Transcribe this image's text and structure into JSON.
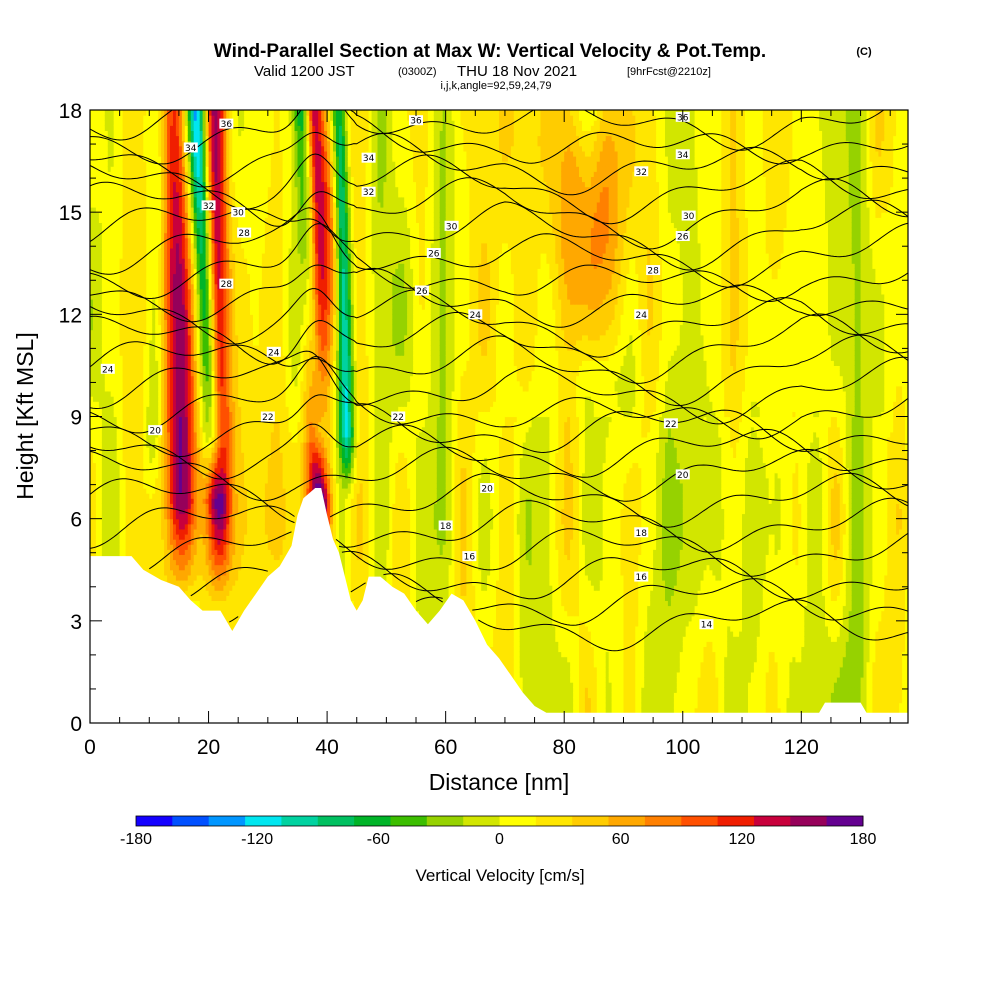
{
  "title": "Wind-Parallel Section at Max W: Vertical Velocity & Pot.Temp.",
  "title_mark": "(C)",
  "subtitle": {
    "valid": "Valid 1200 JST",
    "utc": "(0300Z)",
    "date": "THU 18 Nov 2021",
    "forecast": "[9hrFcst@2210z]",
    "indices": "i,j,k,angle=92,59,24,79"
  },
  "chart_data": {
    "type": "heatmap",
    "xlabel": "Distance [nm]",
    "ylabel": "Height [Kft MSL]",
    "xlim": [
      0,
      138
    ],
    "ylim": [
      0,
      18
    ],
    "x_ticks": [
      0,
      20,
      40,
      60,
      80,
      100,
      120
    ],
    "y_ticks": [
      0,
      3,
      6,
      9,
      12,
      15,
      18
    ],
    "shaded_field": "Vertical Velocity [cm/s]",
    "colorbar": {
      "label": "Vertical Velocity [cm/s]",
      "min": -180,
      "max": 180,
      "ticks": [
        -180,
        -120,
        -60,
        0,
        60,
        120,
        180
      ],
      "colors": [
        "#1400ff",
        "#0050ff",
        "#0096ff",
        "#00e6f0",
        "#00d2a0",
        "#00c060",
        "#00b428",
        "#3cbe00",
        "#96d200",
        "#d2e600",
        "#ffff00",
        "#ffe600",
        "#ffcc00",
        "#ffa800",
        "#ff8000",
        "#ff5000",
        "#f01e00",
        "#c8003c",
        "#96005a",
        "#640090"
      ]
    },
    "contour_field": "Potential Temperature [C]",
    "contour_labels": [
      {
        "value": 14,
        "x": 104,
        "y": 2.9
      },
      {
        "value": 16,
        "x": 93,
        "y": 4.3
      },
      {
        "value": 16,
        "x": 64,
        "y": 4.9
      },
      {
        "value": 18,
        "x": 93,
        "y": 5.6
      },
      {
        "value": 18,
        "x": 60,
        "y": 5.8
      },
      {
        "value": 20,
        "x": 100,
        "y": 7.3
      },
      {
        "value": 20,
        "x": 67,
        "y": 6.9
      },
      {
        "value": 20,
        "x": 11,
        "y": 8.6
      },
      {
        "value": 22,
        "x": 98,
        "y": 8.8
      },
      {
        "value": 22,
        "x": 52,
        "y": 9.0
      },
      {
        "value": 22,
        "x": 30,
        "y": 9.0
      },
      {
        "value": 24,
        "x": 3,
        "y": 10.4
      },
      {
        "value": 24,
        "x": 31,
        "y": 10.9
      },
      {
        "value": 24,
        "x": 65,
        "y": 12.0
      },
      {
        "value": 24,
        "x": 93,
        "y": 12.0
      },
      {
        "value": 26,
        "x": 56,
        "y": 12.7
      },
      {
        "value": 26,
        "x": 58,
        "y": 13.8
      },
      {
        "value": 26,
        "x": 100,
        "y": 14.3
      },
      {
        "value": 28,
        "x": 23,
        "y": 12.9
      },
      {
        "value": 28,
        "x": 26,
        "y": 14.4
      },
      {
        "value": 28,
        "x": 95,
        "y": 13.3
      },
      {
        "value": 30,
        "x": 25,
        "y": 15.0
      },
      {
        "value": 30,
        "x": 61,
        "y": 14.6
      },
      {
        "value": 30,
        "x": 101,
        "y": 14.9
      },
      {
        "value": 32,
        "x": 20,
        "y": 15.2
      },
      {
        "value": 32,
        "x": 47,
        "y": 15.6
      },
      {
        "value": 32,
        "x": 93,
        "y": 16.2
      },
      {
        "value": 34,
        "x": 17,
        "y": 16.9
      },
      {
        "value": 34,
        "x": 47,
        "y": 16.6
      },
      {
        "value": 34,
        "x": 100,
        "y": 16.7
      },
      {
        "value": 36,
        "x": 23,
        "y": 17.6
      },
      {
        "value": 36,
        "x": 55,
        "y": 17.7
      },
      {
        "value": 36,
        "x": 100,
        "y": 17.8
      }
    ],
    "terrain": [
      {
        "x": 0,
        "y": 4.9
      },
      {
        "x": 7,
        "y": 4.9
      },
      {
        "x": 9,
        "y": 4.5
      },
      {
        "x": 12,
        "y": 4.2
      },
      {
        "x": 15,
        "y": 4.0
      },
      {
        "x": 17,
        "y": 3.6
      },
      {
        "x": 19,
        "y": 3.3
      },
      {
        "x": 22,
        "y": 3.3
      },
      {
        "x": 24,
        "y": 2.7
      },
      {
        "x": 26,
        "y": 3.3
      },
      {
        "x": 28,
        "y": 3.8
      },
      {
        "x": 30,
        "y": 4.3
      },
      {
        "x": 32,
        "y": 4.6
      },
      {
        "x": 34,
        "y": 5.2
      },
      {
        "x": 35,
        "y": 6.1
      },
      {
        "x": 36,
        "y": 6.6
      },
      {
        "x": 38,
        "y": 6.9
      },
      {
        "x": 39,
        "y": 6.9
      },
      {
        "x": 40,
        "y": 6.1
      },
      {
        "x": 41,
        "y": 5.4
      },
      {
        "x": 42,
        "y": 5.0
      },
      {
        "x": 43,
        "y": 4.3
      },
      {
        "x": 44,
        "y": 3.6
      },
      {
        "x": 45,
        "y": 3.3
      },
      {
        "x": 46,
        "y": 3.6
      },
      {
        "x": 47,
        "y": 4.3
      },
      {
        "x": 49,
        "y": 4.3
      },
      {
        "x": 51,
        "y": 4.0
      },
      {
        "x": 53,
        "y": 3.8
      },
      {
        "x": 55,
        "y": 3.3
      },
      {
        "x": 57,
        "y": 2.9
      },
      {
        "x": 59,
        "y": 3.3
      },
      {
        "x": 61,
        "y": 3.8
      },
      {
        "x": 63,
        "y": 3.6
      },
      {
        "x": 65,
        "y": 3.0
      },
      {
        "x": 67,
        "y": 2.3
      },
      {
        "x": 69,
        "y": 1.9
      },
      {
        "x": 71,
        "y": 1.4
      },
      {
        "x": 73,
        "y": 0.9
      },
      {
        "x": 75,
        "y": 0.5
      },
      {
        "x": 77,
        "y": 0.3
      },
      {
        "x": 123,
        "y": 0.3
      },
      {
        "x": 124,
        "y": 0.6
      },
      {
        "x": 130,
        "y": 0.6
      },
      {
        "x": 131,
        "y": 0.3
      },
      {
        "x": 138,
        "y": 0.3
      }
    ],
    "updraft_columns": [
      {
        "x_bottom": 16,
        "x_top": 14,
        "w": 140,
        "half_width": 2.5
      },
      {
        "x_bottom": 22,
        "x_top": 21,
        "w": 140,
        "half_width": 2.0
      },
      {
        "x_bottom": 39,
        "x_top": 37.5,
        "w": 180,
        "half_width": 2.0
      },
      {
        "x_bottom": 43,
        "x_top": 40,
        "w": 60,
        "half_width": 1.5
      },
      {
        "x_bottom": 88,
        "x_top": 84,
        "w": 70,
        "half_width": 6.0
      }
    ],
    "downdraft_columns": [
      {
        "x_bottom": 22,
        "x_top": 18,
        "w": -140,
        "half_width": 1.8
      },
      {
        "x_bottom": 40,
        "x_top": 36,
        "w": -150,
        "half_width": 1.6
      },
      {
        "x_bottom": 44,
        "x_top": 42,
        "w": -120,
        "half_width": 1.4
      },
      {
        "x_bottom": 10,
        "x_top": 12,
        "w": -40,
        "half_width": 1.5
      }
    ]
  }
}
